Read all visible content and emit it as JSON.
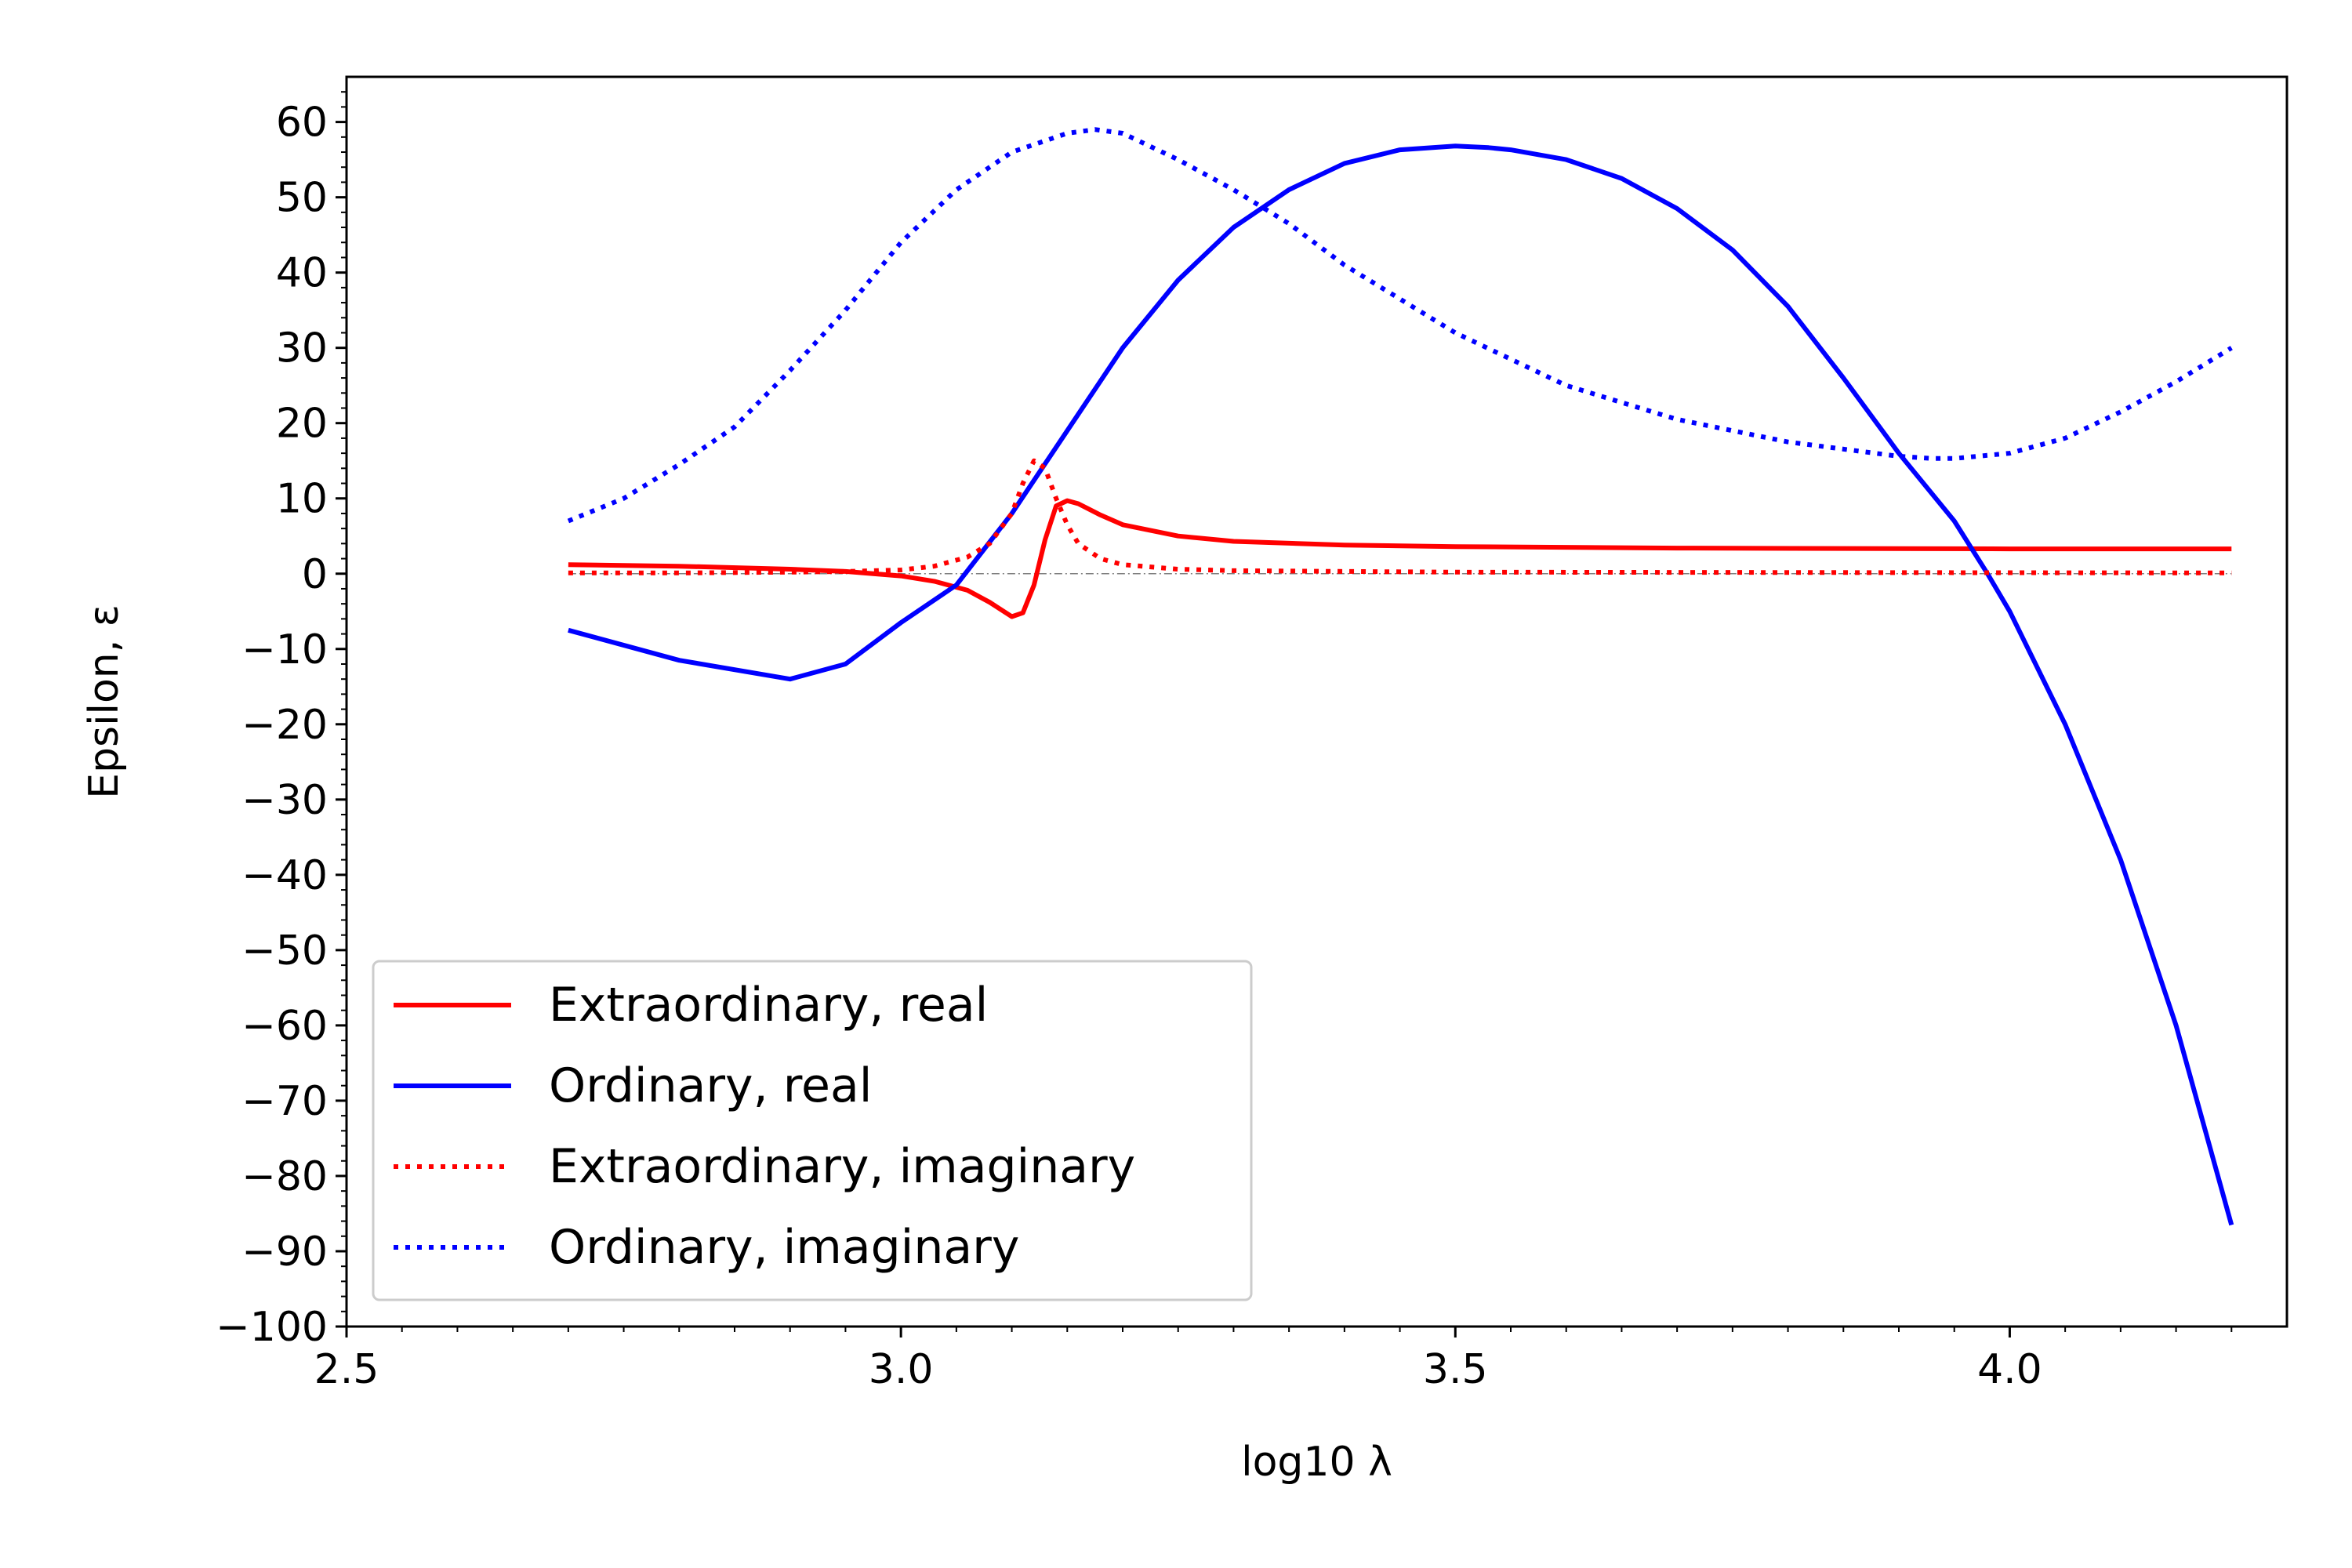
{
  "chart_data": {
    "type": "line",
    "title": "",
    "xlabel": "log10 λ",
    "ylabel": "Epsilon, ε",
    "xlim": [
      2.5,
      4.25
    ],
    "ylim": [
      -100,
      66
    ],
    "x_ticks": [
      2.5,
      3.0,
      3.5,
      4.0
    ],
    "x_tick_labels": [
      "2.5",
      "3.0",
      "3.5",
      "4.0"
    ],
    "y_ticks": [
      60,
      50,
      40,
      30,
      20,
      10,
      0,
      -10,
      -20,
      -30,
      -40,
      -50,
      -60,
      -70,
      -80,
      -90,
      -100
    ],
    "y_tick_labels": [
      "60",
      "50",
      "40",
      "30",
      "20",
      "10",
      "0",
      "−10",
      "−20",
      "−30",
      "−40",
      "−50",
      "−60",
      "−70",
      "−80",
      "−90",
      "−100"
    ],
    "grid": false,
    "legend_position": "lower-left",
    "series": [
      {
        "name": "Extraordinary, real",
        "color": "#ff0000",
        "style": "solid",
        "x": [
          2.7,
          2.8,
          2.9,
          2.95,
          3.0,
          3.03,
          3.06,
          3.08,
          3.1,
          3.11,
          3.12,
          3.13,
          3.14,
          3.15,
          3.16,
          3.18,
          3.2,
          3.25,
          3.3,
          3.4,
          3.5,
          3.7,
          4.0,
          4.2
        ],
        "y": [
          1.2,
          1.0,
          0.6,
          0.3,
          -0.3,
          -1.0,
          -2.2,
          -3.8,
          -5.7,
          -5.2,
          -1.5,
          4.5,
          9.0,
          9.7,
          9.3,
          7.8,
          6.5,
          5.0,
          4.3,
          3.8,
          3.6,
          3.4,
          3.3,
          3.3
        ]
      },
      {
        "name": "Ordinary, real",
        "color": "#0000ff",
        "style": "solid",
        "x": [
          2.7,
          2.8,
          2.9,
          2.95,
          3.0,
          3.05,
          3.1,
          3.15,
          3.2,
          3.25,
          3.3,
          3.35,
          3.4,
          3.45,
          3.5,
          3.53,
          3.55,
          3.6,
          3.65,
          3.7,
          3.75,
          3.8,
          3.85,
          3.9,
          3.95,
          3.98,
          4.0,
          4.05,
          4.1,
          4.15,
          4.2
        ],
        "y": [
          -7.5,
          -11.5,
          -14.0,
          -12.0,
          -6.5,
          -1.5,
          8.0,
          19.0,
          30.0,
          39.0,
          46.0,
          51.0,
          54.5,
          56.3,
          56.8,
          56.6,
          56.3,
          55.0,
          52.5,
          48.5,
          43.0,
          35.5,
          26.0,
          16.0,
          7.0,
          0.0,
          -5.0,
          -20.0,
          -38.0,
          -60.0,
          -86.5
        ]
      },
      {
        "name": "Extraordinary, imaginary",
        "color": "#ff0000",
        "style": "dotted",
        "x": [
          2.7,
          2.8,
          2.9,
          2.95,
          3.0,
          3.03,
          3.06,
          3.08,
          3.1,
          3.11,
          3.12,
          3.13,
          3.14,
          3.15,
          3.16,
          3.18,
          3.2,
          3.25,
          3.3,
          3.5,
          4.2
        ],
        "y": [
          0.1,
          0.1,
          0.2,
          0.3,
          0.5,
          1.0,
          2.2,
          4.0,
          8.0,
          12.0,
          15.0,
          14.0,
          10.0,
          6.5,
          4.0,
          2.0,
          1.2,
          0.6,
          0.4,
          0.2,
          0.1
        ]
      },
      {
        "name": "Ordinary, imaginary",
        "color": "#0000ff",
        "style": "dotted",
        "x": [
          2.7,
          2.75,
          2.8,
          2.85,
          2.9,
          2.95,
          3.0,
          3.05,
          3.1,
          3.15,
          3.175,
          3.2,
          3.25,
          3.3,
          3.35,
          3.4,
          3.5,
          3.6,
          3.7,
          3.8,
          3.9,
          3.93,
          3.95,
          4.0,
          4.05,
          4.1,
          4.15,
          4.2
        ],
        "y": [
          7.0,
          10.0,
          14.5,
          19.5,
          27.0,
          35.0,
          44.0,
          51.0,
          56.0,
          58.5,
          59.0,
          58.5,
          55.0,
          51.0,
          46.5,
          41.0,
          32.0,
          25.0,
          20.5,
          17.5,
          15.6,
          15.3,
          15.3,
          16.0,
          18.0,
          21.5,
          25.5,
          30.0
        ]
      }
    ],
    "reference_line": {
      "y": 0,
      "color": "#808080",
      "style": "dashdot"
    }
  }
}
